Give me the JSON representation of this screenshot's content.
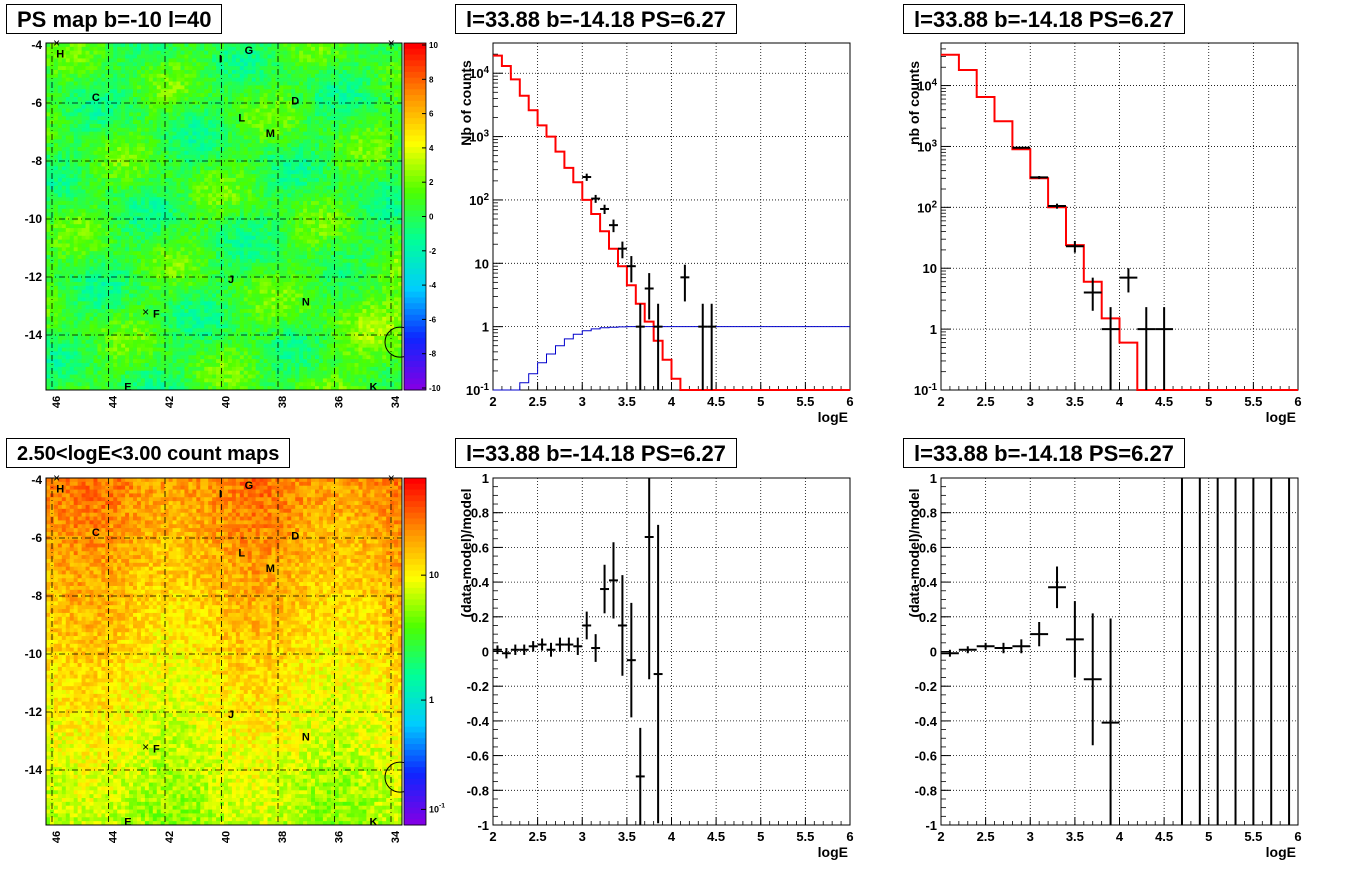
{
  "titles": {
    "ps_map": "PS map b=-10 l=40",
    "count_map": "2.50<logE<3.00 count maps",
    "spec1": "l=33.88 b=-14.18 PS=6.27",
    "spec2": "l=33.88 b=-14.18 PS=6.27",
    "res1": "l=33.88 b=-14.18 PS=6.27",
    "res2": "l=33.88 b=-14.18 PS=6.27"
  },
  "chart_data": [
    {
      "id": "ps_map",
      "type": "heatmap",
      "title": "PS map b=-10 l=40",
      "x_ticks": [
        "46",
        "44",
        "42",
        "40",
        "38",
        "36",
        "34"
      ],
      "y_ticks": [
        "-4",
        "-6",
        "-8",
        "-10",
        "-12",
        "-14"
      ],
      "colorbar_ticks": [
        "10",
        "8",
        "6",
        "4",
        "2",
        "0",
        "-2",
        "-4",
        "-6",
        "-8",
        "-10"
      ],
      "colorbar_range": [
        -10,
        10
      ],
      "labels": [
        "H",
        "G",
        "I",
        "C",
        "D",
        "L",
        "M",
        "J",
        "N",
        "F",
        "E",
        "K"
      ],
      "grid": true
    },
    {
      "id": "count_map",
      "type": "heatmap",
      "title": "2.50<logE<3.00 count maps",
      "x_ticks": [
        "46",
        "44",
        "42",
        "40",
        "38",
        "36",
        "34"
      ],
      "y_ticks": [
        "-4",
        "-6",
        "-8",
        "-10",
        "-12",
        "-14"
      ],
      "colorbar_ticks": [
        "10",
        "1",
        "10^-1"
      ],
      "colorbar_scale": "log",
      "labels": [
        "H",
        "G",
        "I",
        "C",
        "D",
        "L",
        "M",
        "J",
        "N",
        "F",
        "E",
        "K"
      ],
      "grid": true
    },
    {
      "id": "spec1",
      "type": "line",
      "title": "l=33.88 b=-14.18 PS=6.27",
      "xlabel": "logE",
      "ylabel": "Nb of counts",
      "xlim": [
        2,
        6
      ],
      "ylim": [
        0.1,
        30000
      ],
      "yscale": "log",
      "x_ticks": [
        "2",
        "2.5",
        "3",
        "3.5",
        "4",
        "4.5",
        "5",
        "5.5",
        "6"
      ],
      "y_ticks": [
        "10^-1",
        "1",
        "10",
        "10^2",
        "10^3",
        "10^4"
      ],
      "grid": true,
      "series": [
        {
          "kind": "step",
          "color": "#ff0000",
          "bin_width": 0.1,
          "x": [
            2.05,
            2.15,
            2.25,
            2.35,
            2.45,
            2.55,
            2.65,
            2.75,
            2.85,
            2.95,
            3.05,
            3.15,
            3.25,
            3.35,
            3.45,
            3.55,
            3.65,
            3.75,
            3.85,
            3.95,
            4.05,
            4.15,
            4.25,
            4.35,
            4.45,
            4.55,
            4.65,
            4.75,
            4.85,
            4.95,
            5.05,
            5.15,
            5.25,
            5.35,
            5.45,
            5.55,
            5.65,
            5.75,
            5.85,
            5.95
          ],
          "values": [
            19000,
            13000,
            8000,
            4400,
            2600,
            1500,
            1000,
            580,
            320,
            190,
            100,
            60,
            32,
            17,
            9,
            4.5,
            2.3,
            1.2,
            0.6,
            0.3,
            0.15,
            0.1,
            0.1,
            0.1,
            0.1,
            0.1,
            0.1,
            0.1,
            0.1,
            0.1,
            0.1,
            0.1,
            0.1,
            0.1,
            0.1,
            0.1,
            0.1,
            0.1,
            0.1,
            0.1
          ]
        },
        {
          "kind": "step",
          "color": "#0000cc",
          "bin_width": 0.1,
          "x": [
            2.05,
            2.15,
            2.25,
            2.35,
            2.45,
            2.55,
            2.65,
            2.75,
            2.85,
            2.95,
            3.05,
            3.15,
            3.25,
            3.35,
            3.45,
            3.55,
            3.65,
            3.75,
            3.85,
            3.95,
            4.05,
            4.15,
            4.25,
            4.35,
            4.45,
            4.55,
            4.65,
            4.75,
            4.85,
            4.95,
            5.05,
            5.15,
            5.25,
            5.35,
            5.45,
            5.55,
            5.65,
            5.75,
            5.85,
            5.95
          ],
          "values": [
            0.1,
            0.1,
            0.1,
            0.13,
            0.18,
            0.27,
            0.37,
            0.5,
            0.64,
            0.76,
            0.86,
            0.92,
            0.96,
            0.98,
            0.99,
            1,
            1,
            1,
            1,
            1,
            1,
            1,
            1,
            1,
            1,
            1,
            1,
            1,
            1,
            1,
            1,
            1,
            1,
            1,
            1,
            1,
            1,
            1,
            1,
            1
          ]
        },
        {
          "kind": "errorbars",
          "color": "#000000",
          "x": [
            3.05,
            3.15,
            3.25,
            3.35,
            3.45,
            3.55,
            3.65,
            3.75,
            3.85,
            4.15,
            4.35,
            4.45
          ],
          "values": [
            230,
            105,
            72,
            40,
            17,
            9,
            1,
            4,
            1,
            6,
            1,
            1
          ],
          "xerr": 0.05,
          "err_low": [
            30,
            15,
            12,
            9,
            5,
            4,
            1,
            2.7,
            1,
            3.5,
            1,
            1
          ],
          "err_high": [
            30,
            15,
            12,
            9,
            5,
            4,
            1.3,
            3,
            1.3,
            3.5,
            1.3,
            1.3
          ]
        }
      ]
    },
    {
      "id": "spec2",
      "type": "line",
      "title": "l=33.88 b=-14.18 PS=6.27",
      "xlabel": "logE",
      "ylabel": "nb of counts",
      "xlim": [
        2,
        6
      ],
      "ylim": [
        0.1,
        50000
      ],
      "yscale": "log",
      "x_ticks": [
        "2",
        "2.5",
        "3",
        "3.5",
        "4",
        "4.5",
        "5",
        "5.5",
        "6"
      ],
      "y_ticks": [
        "10^-1",
        "1",
        "10",
        "10^2",
        "10^3",
        "10^4"
      ],
      "grid": true,
      "series": [
        {
          "kind": "step",
          "color": "#ff0000",
          "bin_width": 0.2,
          "x": [
            2.1,
            2.3,
            2.5,
            2.7,
            2.9,
            3.1,
            3.3,
            3.5,
            3.7,
            3.9,
            4.1,
            4.3,
            4.5,
            4.7,
            4.9,
            5.1,
            5.3,
            5.5,
            5.7,
            5.9
          ],
          "values": [
            32000,
            18000,
            6500,
            2600,
            900,
            300,
            100,
            24,
            6,
            1.5,
            0.6,
            0.1,
            0.1,
            0.1,
            0.1,
            0.1,
            0.1,
            0.1,
            0.1,
            0.1
          ]
        },
        {
          "kind": "errorbars",
          "color": "#000000",
          "x": [
            2.9,
            3.1,
            3.3,
            3.5,
            3.7,
            3.9,
            4.1,
            4.3,
            4.5
          ],
          "values": [
            950,
            310,
            105,
            23,
            4,
            1,
            7,
            1,
            1
          ],
          "xerr": 0.1,
          "err_low": [
            30,
            17,
            10,
            5,
            2,
            1,
            3,
            1,
            1
          ],
          "err_high": [
            30,
            17,
            10,
            5,
            3,
            1.3,
            3,
            1.3,
            1.3
          ]
        }
      ]
    },
    {
      "id": "res1",
      "type": "scatter",
      "title": "l=33.88 b=-14.18 PS=6.27",
      "xlabel": "logE",
      "ylabel": "(data-model)/model",
      "xlim": [
        2,
        6
      ],
      "ylim": [
        -1,
        1
      ],
      "x_ticks": [
        "2",
        "2.5",
        "3",
        "3.5",
        "4",
        "4.5",
        "5",
        "5.5",
        "6"
      ],
      "y_ticks": [
        "-1",
        "-0.8",
        "-0.6",
        "-0.4",
        "-0.2",
        "0",
        "0.2",
        "0.4",
        "0.6",
        "0.8",
        "1"
      ],
      "grid": true,
      "series": [
        {
          "kind": "errorbars",
          "color": "#000000",
          "x": [
            2.05,
            2.15,
            2.25,
            2.35,
            2.45,
            2.55,
            2.65,
            2.75,
            2.85,
            2.95,
            3.05,
            3.15,
            3.25,
            3.35,
            3.45,
            3.55,
            3.65,
            3.75,
            3.85
          ],
          "values": [
            0.01,
            -0.01,
            0.01,
            0.01,
            0.03,
            0.04,
            0.01,
            0.04,
            0.04,
            0.03,
            0.15,
            0.02,
            0.36,
            0.41,
            0.15,
            -0.05,
            -0.72,
            0.66,
            -0.13
          ],
          "xerr": 0.05,
          "err_low": [
            0.025,
            0.03,
            0.03,
            0.03,
            0.03,
            0.035,
            0.04,
            0.04,
            0.04,
            0.05,
            0.08,
            0.08,
            0.14,
            0.22,
            0.29,
            0.33,
            0.28,
            0.82,
            0.86
          ],
          "err_high": [
            0.025,
            0.03,
            0.03,
            0.03,
            0.03,
            0.035,
            0.04,
            0.04,
            0.04,
            0.05,
            0.08,
            0.08,
            0.14,
            0.22,
            0.29,
            0.33,
            0.28,
            0.34,
            0.86
          ]
        }
      ]
    },
    {
      "id": "res2",
      "type": "scatter",
      "title": "l=33.88 b=-14.18 PS=6.27",
      "xlabel": "logE",
      "ylabel": "(data-model)/model",
      "xlim": [
        2,
        6
      ],
      "ylim": [
        -1,
        1
      ],
      "x_ticks": [
        "2",
        "2.5",
        "3",
        "3.5",
        "4",
        "4.5",
        "5",
        "5.5",
        "6"
      ],
      "y_ticks": [
        "-1",
        "-0.8",
        "-0.6",
        "-0.4",
        "-0.2",
        "0",
        "0.2",
        "0.4",
        "0.6",
        "0.8",
        "1"
      ],
      "grid": true,
      "series": [
        {
          "kind": "errorbars",
          "color": "#000000",
          "x": [
            2.1,
            2.3,
            2.5,
            2.7,
            2.9,
            3.1,
            3.3,
            3.5,
            3.7,
            3.9
          ],
          "values": [
            -0.01,
            0.01,
            0.03,
            0.02,
            0.03,
            0.1,
            0.37,
            0.07,
            -0.16,
            -0.41
          ],
          "xerr": 0.1,
          "err_low": [
            0.02,
            0.02,
            0.02,
            0.03,
            0.04,
            0.07,
            0.12,
            0.22,
            0.38,
            0.6
          ],
          "err_high": [
            0.02,
            0.02,
            0.02,
            0.03,
            0.04,
            0.07,
            0.12,
            0.22,
            0.38,
            0.6
          ]
        },
        {
          "kind": "vlines",
          "color": "#000000",
          "x": [
            4.7,
            4.9,
            5.1,
            5.3,
            5.5,
            5.7,
            5.9
          ]
        }
      ]
    }
  ]
}
